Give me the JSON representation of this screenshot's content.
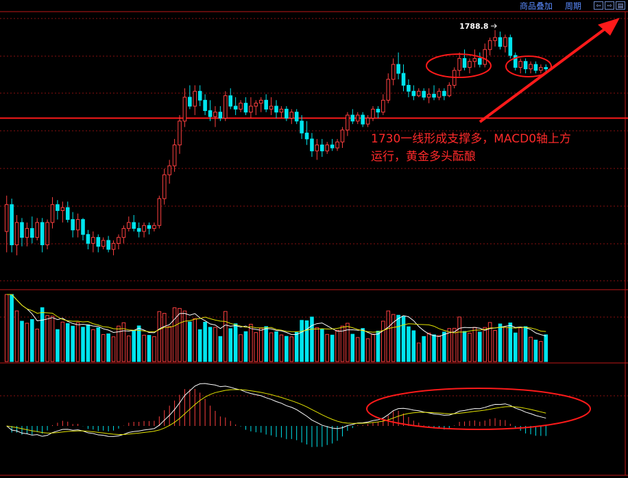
{
  "topbar": {
    "overlay_label": "商品叠加",
    "period_label": "周期",
    "nav_icons": [
      "arrow-left-icon",
      "arrow-right-icon",
      "window-icon"
    ]
  },
  "annotation": {
    "line1": "1730一线形成支撑多，MACD0轴上方",
    "line2": "运行，黄金多头酝酿"
  },
  "colors": {
    "background": "#000000",
    "up": "#ff4040",
    "down": "#00e5ee",
    "grid": "#8b1010",
    "annotation": "#ff2a2a",
    "ma_white": "#ffffff",
    "ma_yellow": "#e6e600"
  },
  "chart_data": [
    {
      "type": "candlestick",
      "panel": "price",
      "peak_label": "1788.8",
      "support_level": 1730,
      "ylim": [
        1620,
        1800
      ],
      "ohlc": [
        [
          1654,
          1678,
          1640,
          1672
        ],
        [
          1672,
          1676,
          1640,
          1645
        ],
        [
          1645,
          1665,
          1638,
          1660
        ],
        [
          1660,
          1663,
          1644,
          1650
        ],
        [
          1650,
          1660,
          1644,
          1656
        ],
        [
          1656,
          1664,
          1646,
          1650
        ],
        [
          1650,
          1663,
          1648,
          1660
        ],
        [
          1660,
          1663,
          1640,
          1645
        ],
        [
          1645,
          1662,
          1642,
          1660
        ],
        [
          1660,
          1677,
          1656,
          1672
        ],
        [
          1672,
          1675,
          1662,
          1668
        ],
        [
          1668,
          1674,
          1660,
          1670
        ],
        [
          1670,
          1674,
          1660,
          1662
        ],
        [
          1662,
          1667,
          1650,
          1655
        ],
        [
          1655,
          1666,
          1650,
          1662
        ],
        [
          1662,
          1663,
          1648,
          1652
        ],
        [
          1652,
          1655,
          1642,
          1646
        ],
        [
          1646,
          1654,
          1640,
          1650
        ],
        [
          1650,
          1652,
          1640,
          1644
        ],
        [
          1644,
          1650,
          1642,
          1648
        ],
        [
          1648,
          1651,
          1640,
          1642
        ],
        [
          1642,
          1648,
          1638,
          1646
        ],
        [
          1646,
          1652,
          1642,
          1650
        ],
        [
          1650,
          1658,
          1646,
          1656
        ],
        [
          1656,
          1664,
          1654,
          1660
        ],
        [
          1660,
          1665,
          1654,
          1656
        ],
        [
          1656,
          1660,
          1650,
          1654
        ],
        [
          1654,
          1660,
          1650,
          1658
        ],
        [
          1658,
          1660,
          1652,
          1656
        ],
        [
          1656,
          1660,
          1654,
          1658
        ],
        [
          1658,
          1678,
          1656,
          1676
        ],
        [
          1676,
          1696,
          1672,
          1692
        ],
        [
          1692,
          1702,
          1686,
          1698
        ],
        [
          1698,
          1716,
          1694,
          1712
        ],
        [
          1712,
          1732,
          1706,
          1728
        ],
        [
          1728,
          1750,
          1724,
          1744
        ],
        [
          1744,
          1752,
          1736,
          1738
        ],
        [
          1738,
          1752,
          1732,
          1748
        ],
        [
          1748,
          1752,
          1738,
          1742
        ],
        [
          1742,
          1746,
          1732,
          1735
        ],
        [
          1735,
          1742,
          1728,
          1731
        ],
        [
          1731,
          1738,
          1724,
          1734
        ],
        [
          1734,
          1738,
          1728,
          1730
        ],
        [
          1730,
          1748,
          1728,
          1745
        ],
        [
          1745,
          1750,
          1736,
          1738
        ],
        [
          1738,
          1744,
          1732,
          1736
        ],
        [
          1736,
          1742,
          1734,
          1740
        ],
        [
          1740,
          1744,
          1732,
          1734
        ],
        [
          1734,
          1744,
          1730,
          1738
        ],
        [
          1738,
          1742,
          1732,
          1740
        ],
        [
          1740,
          1744,
          1734,
          1742
        ],
        [
          1742,
          1746,
          1734,
          1736
        ],
        [
          1736,
          1744,
          1732,
          1738
        ],
        [
          1738,
          1742,
          1730,
          1734
        ],
        [
          1734,
          1738,
          1730,
          1736
        ],
        [
          1736,
          1738,
          1728,
          1730
        ],
        [
          1730,
          1736,
          1726,
          1734
        ],
        [
          1734,
          1736,
          1726,
          1728
        ],
        [
          1728,
          1732,
          1716,
          1720
        ],
        [
          1720,
          1728,
          1712,
          1716
        ],
        [
          1716,
          1720,
          1704,
          1708
        ],
        [
          1708,
          1716,
          1702,
          1712
        ],
        [
          1712,
          1716,
          1704,
          1708
        ],
        [
          1708,
          1714,
          1706,
          1712
        ],
        [
          1712,
          1716,
          1708,
          1710
        ],
        [
          1710,
          1716,
          1708,
          1714
        ],
        [
          1714,
          1724,
          1710,
          1722
        ],
        [
          1722,
          1734,
          1718,
          1732
        ],
        [
          1732,
          1736,
          1726,
          1728
        ],
        [
          1728,
          1734,
          1726,
          1732
        ],
        [
          1732,
          1734,
          1724,
          1726
        ],
        [
          1726,
          1732,
          1724,
          1730
        ],
        [
          1730,
          1738,
          1728,
          1736
        ],
        [
          1736,
          1738,
          1730,
          1734
        ],
        [
          1734,
          1746,
          1732,
          1742
        ],
        [
          1742,
          1760,
          1740,
          1756
        ],
        [
          1756,
          1770,
          1752,
          1766
        ],
        [
          1766,
          1774,
          1756,
          1760
        ],
        [
          1760,
          1766,
          1748,
          1752
        ],
        [
          1752,
          1756,
          1744,
          1748
        ],
        [
          1748,
          1752,
          1742,
          1745
        ],
        [
          1745,
          1750,
          1744,
          1748
        ],
        [
          1748,
          1750,
          1742,
          1744
        ],
        [
          1744,
          1750,
          1740,
          1746
        ],
        [
          1746,
          1752,
          1742,
          1744
        ],
        [
          1744,
          1750,
          1742,
          1748
        ],
        [
          1748,
          1750,
          1742,
          1745
        ],
        [
          1745,
          1754,
          1744,
          1752
        ],
        [
          1752,
          1764,
          1750,
          1762
        ],
        [
          1762,
          1774,
          1758,
          1770
        ],
        [
          1770,
          1776,
          1762,
          1764
        ],
        [
          1764,
          1770,
          1760,
          1768
        ],
        [
          1768,
          1776,
          1764,
          1770
        ],
        [
          1770,
          1774,
          1764,
          1766
        ],
        [
          1766,
          1780,
          1764,
          1776
        ],
        [
          1776,
          1784,
          1772,
          1782
        ],
        [
          1782,
          1789,
          1778,
          1784
        ],
        [
          1784,
          1788,
          1776,
          1778
        ],
        [
          1778,
          1786,
          1774,
          1784
        ],
        [
          1784,
          1786,
          1770,
          1772
        ],
        [
          1772,
          1774,
          1762,
          1764
        ],
        [
          1764,
          1770,
          1760,
          1768
        ],
        [
          1768,
          1770,
          1760,
          1763
        ],
        [
          1763,
          1768,
          1760,
          1766
        ],
        [
          1766,
          1768,
          1760,
          1762
        ],
        [
          1762,
          1766,
          1760,
          1764
        ],
        [
          1764,
          1766,
          1760,
          1763
        ]
      ]
    },
    {
      "type": "bar",
      "panel": "volume",
      "ylim": [
        0,
        100
      ]
    },
    {
      "type": "bar",
      "panel": "macd",
      "zero_line": 0
    }
  ]
}
